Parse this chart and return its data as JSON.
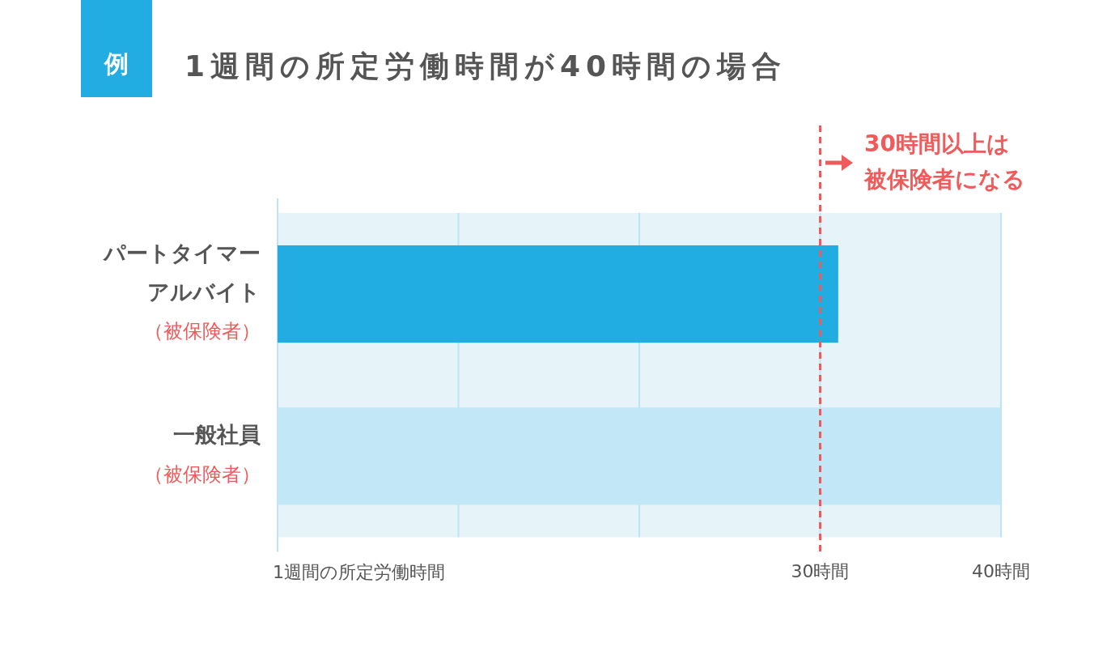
{
  "chart_data": {
    "type": "bar",
    "orientation": "horizontal",
    "title": "1週間の所定労働時間が40時間の場合",
    "xlabel": "1週間の所定労働時間",
    "categories": [
      "パートタイマーアルバイト",
      "一般社員"
    ],
    "values": [
      31,
      40
    ],
    "colors": [
      "#21ade2",
      "#c2e7f6"
    ],
    "xlim": [
      0,
      40
    ],
    "xticks": [
      {
        "value": 10,
        "label": null
      },
      {
        "value": 20,
        "label": null
      },
      {
        "value": 30,
        "label": "30時間"
      },
      {
        "value": 40,
        "label": "40時間"
      }
    ],
    "grid": "x",
    "ref_lines": [
      {
        "axis": "x",
        "value": 30,
        "label": "30時間以上は被保険者になる",
        "color": "#f05a5a",
        "line_style": "dashed"
      }
    ],
    "annotations": [
      "例",
      "（被保険者）",
      "（被保険者）"
    ]
  }
}
